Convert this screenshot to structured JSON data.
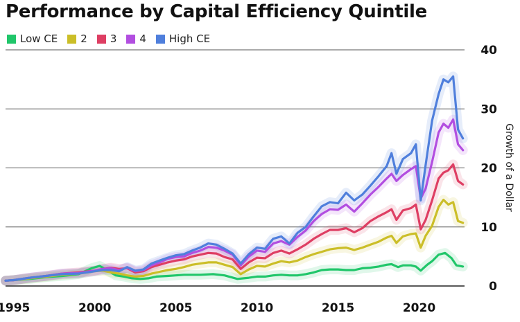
{
  "title": "Performance by Capital Efficiency Quintile",
  "legend": [
    {
      "label": "Low CE",
      "color": "#20c66a"
    },
    {
      "label": "2",
      "color": "#cbbe28"
    },
    {
      "label": "3",
      "color": "#de3e63"
    },
    {
      "label": "4",
      "color": "#b24ee0"
    },
    {
      "label": "High CE",
      "color": "#4f7fdc"
    }
  ],
  "chart_data": {
    "type": "line",
    "title": "Performance by Capital Efficiency Quintile",
    "xlabel": "",
    "ylabel": "Growth of a Dollar",
    "xlim": [
      1994.5,
      2022.8
    ],
    "ylim": [
      0,
      40
    ],
    "x_ticks": [
      "1995",
      "2000",
      "2005",
      "2010",
      "2015",
      "2020"
    ],
    "y_ticks": [
      "0",
      "10",
      "20",
      "30",
      "40"
    ],
    "y_axis_position": "right",
    "grid": "horizontal",
    "legend_position": "top-left",
    "series": [
      {
        "name": "Low CE",
        "color": "#20c66a",
        "points": [
          [
            1994.5,
            0.9
          ],
          [
            1995,
            1.0
          ],
          [
            1996,
            1.2
          ],
          [
            1997,
            1.5
          ],
          [
            1998,
            1.7
          ],
          [
            1999,
            2.0
          ],
          [
            1999.8,
            3.0
          ],
          [
            2000.3,
            3.4
          ],
          [
            2000.8,
            2.6
          ],
          [
            2001.3,
            1.8
          ],
          [
            2001.8,
            1.6
          ],
          [
            2002.3,
            1.3
          ],
          [
            2002.8,
            1.2
          ],
          [
            2003.3,
            1.3
          ],
          [
            2003.8,
            1.6
          ],
          [
            2004.5,
            1.7
          ],
          [
            2005.5,
            1.9
          ],
          [
            2006.5,
            1.9
          ],
          [
            2007.3,
            2.0
          ],
          [
            2008,
            1.8
          ],
          [
            2008.8,
            1.2
          ],
          [
            2009.5,
            1.4
          ],
          [
            2010,
            1.6
          ],
          [
            2010.5,
            1.6
          ],
          [
            2011,
            1.8
          ],
          [
            2011.5,
            1.9
          ],
          [
            2012,
            1.8
          ],
          [
            2012.5,
            1.8
          ],
          [
            2013,
            2.0
          ],
          [
            2013.5,
            2.3
          ],
          [
            2014,
            2.7
          ],
          [
            2014.5,
            2.8
          ],
          [
            2015,
            2.8
          ],
          [
            2015.5,
            2.7
          ],
          [
            2016,
            2.7
          ],
          [
            2016.5,
            3.0
          ],
          [
            2017,
            3.1
          ],
          [
            2017.5,
            3.3
          ],
          [
            2018,
            3.6
          ],
          [
            2018.3,
            3.7
          ],
          [
            2018.7,
            3.2
          ],
          [
            2019,
            3.5
          ],
          [
            2019.5,
            3.5
          ],
          [
            2019.8,
            3.3
          ],
          [
            2020.1,
            2.6
          ],
          [
            2020.5,
            3.6
          ],
          [
            2020.8,
            4.2
          ],
          [
            2021.2,
            5.3
          ],
          [
            2021.6,
            5.6
          ],
          [
            2022,
            4.7
          ],
          [
            2022.3,
            3.5
          ],
          [
            2022.7,
            3.3
          ]
        ]
      },
      {
        "name": "2",
        "color": "#cbbe28",
        "points": [
          [
            1994.5,
            0.9
          ],
          [
            1995,
            1.0
          ],
          [
            1996,
            1.3
          ],
          [
            1997,
            1.6
          ],
          [
            1998,
            1.9
          ],
          [
            1999,
            2.1
          ],
          [
            2000,
            2.5
          ],
          [
            2000.5,
            2.6
          ],
          [
            2001,
            2.3
          ],
          [
            2001.5,
            2.1
          ],
          [
            2002,
            1.8
          ],
          [
            2002.5,
            1.6
          ],
          [
            2003,
            1.7
          ],
          [
            2003.5,
            2.1
          ],
          [
            2004,
            2.4
          ],
          [
            2004.5,
            2.7
          ],
          [
            2005,
            2.9
          ],
          [
            2005.5,
            3.2
          ],
          [
            2006,
            3.6
          ],
          [
            2006.5,
            3.8
          ],
          [
            2007,
            4.0
          ],
          [
            2007.5,
            4.0
          ],
          [
            2008,
            3.6
          ],
          [
            2008.5,
            3.2
          ],
          [
            2009,
            2.0
          ],
          [
            2009.5,
            2.8
          ],
          [
            2010,
            3.4
          ],
          [
            2010.5,
            3.3
          ],
          [
            2011,
            3.8
          ],
          [
            2011.5,
            4.2
          ],
          [
            2012,
            4.0
          ],
          [
            2012.5,
            4.3
          ],
          [
            2013,
            4.9
          ],
          [
            2013.5,
            5.4
          ],
          [
            2014,
            5.8
          ],
          [
            2014.5,
            6.2
          ],
          [
            2015,
            6.4
          ],
          [
            2015.5,
            6.5
          ],
          [
            2016,
            6.1
          ],
          [
            2016.5,
            6.5
          ],
          [
            2017,
            7.0
          ],
          [
            2017.5,
            7.5
          ],
          [
            2018,
            8.2
          ],
          [
            2018.3,
            8.5
          ],
          [
            2018.6,
            7.3
          ],
          [
            2019,
            8.4
          ],
          [
            2019.5,
            8.8
          ],
          [
            2019.8,
            8.9
          ],
          [
            2020.1,
            6.5
          ],
          [
            2020.4,
            8.5
          ],
          [
            2020.8,
            10.2
          ],
          [
            2021.2,
            13.4
          ],
          [
            2021.5,
            14.6
          ],
          [
            2021.8,
            13.8
          ],
          [
            2022.1,
            14.2
          ],
          [
            2022.4,
            11.0
          ],
          [
            2022.7,
            10.7
          ]
        ]
      },
      {
        "name": "3",
        "color": "#de3e63",
        "points": [
          [
            1994.5,
            0.9
          ],
          [
            1995,
            1.0
          ],
          [
            1996,
            1.4
          ],
          [
            1997,
            1.7
          ],
          [
            1998,
            2.1
          ],
          [
            1999,
            2.3
          ],
          [
            2000,
            2.6
          ],
          [
            2000.5,
            2.9
          ],
          [
            2001,
            3.1
          ],
          [
            2001.5,
            2.9
          ],
          [
            2002,
            3.0
          ],
          [
            2002.5,
            2.3
          ],
          [
            2003,
            2.5
          ],
          [
            2003.5,
            3.2
          ],
          [
            2004,
            3.6
          ],
          [
            2004.5,
            4.0
          ],
          [
            2005,
            4.3
          ],
          [
            2005.5,
            4.5
          ],
          [
            2006,
            5.0
          ],
          [
            2006.5,
            5.3
          ],
          [
            2007,
            5.6
          ],
          [
            2007.5,
            5.5
          ],
          [
            2008,
            4.9
          ],
          [
            2008.5,
            4.5
          ],
          [
            2009,
            2.9
          ],
          [
            2009.5,
            4.0
          ],
          [
            2010,
            4.8
          ],
          [
            2010.5,
            4.7
          ],
          [
            2011,
            5.6
          ],
          [
            2011.5,
            6.0
          ],
          [
            2012,
            5.5
          ],
          [
            2012.5,
            6.2
          ],
          [
            2013,
            7.0
          ],
          [
            2013.5,
            8.0
          ],
          [
            2014,
            8.8
          ],
          [
            2014.5,
            9.5
          ],
          [
            2015,
            9.5
          ],
          [
            2015.5,
            9.8
          ],
          [
            2016,
            9.1
          ],
          [
            2016.5,
            9.8
          ],
          [
            2017,
            11.0
          ],
          [
            2017.5,
            11.8
          ],
          [
            2018,
            12.5
          ],
          [
            2018.3,
            13.0
          ],
          [
            2018.6,
            11.2
          ],
          [
            2019,
            12.8
          ],
          [
            2019.5,
            13.2
          ],
          [
            2019.8,
            13.8
          ],
          [
            2020.1,
            9.6
          ],
          [
            2020.4,
            11.2
          ],
          [
            2020.8,
            14.5
          ],
          [
            2021.2,
            18.2
          ],
          [
            2021.5,
            19.2
          ],
          [
            2021.8,
            19.6
          ],
          [
            2022.1,
            20.6
          ],
          [
            2022.4,
            17.8
          ],
          [
            2022.7,
            17.2
          ]
        ]
      },
      {
        "name": "4",
        "color": "#b24ee0",
        "points": [
          [
            1994.5,
            0.9
          ],
          [
            1995,
            1.0
          ],
          [
            1996,
            1.4
          ],
          [
            1997,
            1.7
          ],
          [
            1998,
            2.1
          ],
          [
            1999,
            2.2
          ],
          [
            2000,
            2.6
          ],
          [
            2000.5,
            2.9
          ],
          [
            2001,
            3.0
          ],
          [
            2001.5,
            2.7
          ],
          [
            2002,
            3.1
          ],
          [
            2002.5,
            2.5
          ],
          [
            2003,
            2.7
          ],
          [
            2003.5,
            3.5
          ],
          [
            2004,
            4.0
          ],
          [
            2004.5,
            4.6
          ],
          [
            2005,
            4.9
          ],
          [
            2005.5,
            5.0
          ],
          [
            2006,
            5.6
          ],
          [
            2006.5,
            6.0
          ],
          [
            2007,
            6.6
          ],
          [
            2007.5,
            6.5
          ],
          [
            2008,
            6.0
          ],
          [
            2008.5,
            5.3
          ],
          [
            2009,
            3.5
          ],
          [
            2009.5,
            5.0
          ],
          [
            2010,
            6.0
          ],
          [
            2010.5,
            5.8
          ],
          [
            2011,
            7.2
          ],
          [
            2011.5,
            7.6
          ],
          [
            2012,
            7.0
          ],
          [
            2012.5,
            8.3
          ],
          [
            2013,
            9.4
          ],
          [
            2013.5,
            11.0
          ],
          [
            2014,
            12.2
          ],
          [
            2014.5,
            13.0
          ],
          [
            2015,
            12.9
          ],
          [
            2015.5,
            13.8
          ],
          [
            2016,
            12.6
          ],
          [
            2016.5,
            14.0
          ],
          [
            2017,
            15.5
          ],
          [
            2017.5,
            16.8
          ],
          [
            2018,
            18.2
          ],
          [
            2018.3,
            19.0
          ],
          [
            2018.6,
            17.8
          ],
          [
            2019,
            18.8
          ],
          [
            2019.5,
            19.8
          ],
          [
            2019.8,
            20.3
          ],
          [
            2020.1,
            14.8
          ],
          [
            2020.4,
            16.5
          ],
          [
            2020.8,
            21.0
          ],
          [
            2021.2,
            26.0
          ],
          [
            2021.5,
            27.5
          ],
          [
            2021.8,
            26.8
          ],
          [
            2022.1,
            28.2
          ],
          [
            2022.4,
            24.0
          ],
          [
            2022.7,
            23.0
          ]
        ]
      },
      {
        "name": "High CE",
        "color": "#4f7fdc",
        "points": [
          [
            1994.5,
            0.9
          ],
          [
            1995,
            1.0
          ],
          [
            1996,
            1.4
          ],
          [
            1997,
            1.7
          ],
          [
            1998,
            2.0
          ],
          [
            1999,
            2.1
          ],
          [
            2000,
            2.5
          ],
          [
            2000.5,
            2.7
          ],
          [
            2001,
            2.7
          ],
          [
            2001.5,
            2.5
          ],
          [
            2002,
            3.2
          ],
          [
            2002.5,
            2.6
          ],
          [
            2003,
            2.8
          ],
          [
            2003.5,
            3.8
          ],
          [
            2004,
            4.3
          ],
          [
            2004.5,
            4.8
          ],
          [
            2005,
            5.2
          ],
          [
            2005.5,
            5.4
          ],
          [
            2006,
            6.0
          ],
          [
            2006.5,
            6.5
          ],
          [
            2007,
            7.2
          ],
          [
            2007.5,
            7.0
          ],
          [
            2008,
            6.3
          ],
          [
            2008.5,
            5.5
          ],
          [
            2009,
            3.8
          ],
          [
            2009.5,
            5.4
          ],
          [
            2010,
            6.5
          ],
          [
            2010.5,
            6.3
          ],
          [
            2011,
            8.0
          ],
          [
            2011.5,
            8.4
          ],
          [
            2012,
            7.2
          ],
          [
            2012.5,
            9.0
          ],
          [
            2013,
            10.0
          ],
          [
            2013.5,
            11.8
          ],
          [
            2014,
            13.5
          ],
          [
            2014.5,
            14.2
          ],
          [
            2015,
            14.0
          ],
          [
            2015.5,
            15.8
          ],
          [
            2016,
            14.5
          ],
          [
            2016.5,
            15.5
          ],
          [
            2017,
            17.0
          ],
          [
            2017.5,
            18.6
          ],
          [
            2018,
            20.3
          ],
          [
            2018.3,
            22.5
          ],
          [
            2018.6,
            19.0
          ],
          [
            2019,
            21.5
          ],
          [
            2019.5,
            22.5
          ],
          [
            2019.8,
            24.0
          ],
          [
            2020.1,
            14.5
          ],
          [
            2020.4,
            20.5
          ],
          [
            2020.8,
            28.0
          ],
          [
            2021.2,
            32.5
          ],
          [
            2021.5,
            35.0
          ],
          [
            2021.8,
            34.5
          ],
          [
            2022.1,
            35.5
          ],
          [
            2022.4,
            26.5
          ],
          [
            2022.7,
            25.0
          ]
        ]
      }
    ]
  }
}
